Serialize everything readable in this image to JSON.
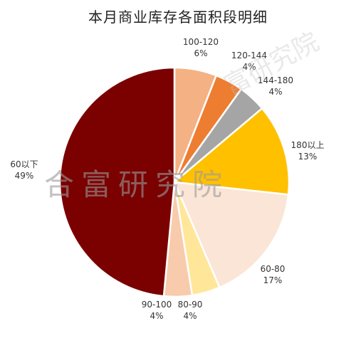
{
  "chart_data": {
    "type": "pie",
    "title": "本月商业库存各面积段明细",
    "start_angle_deg": 0,
    "direction": "clockwise",
    "slices": [
      {
        "label": "100-120",
        "value": 6,
        "value_label": "6%",
        "color": "#F4B183"
      },
      {
        "label": "120-144",
        "value": 4,
        "value_label": "4%",
        "color": "#ED7D31"
      },
      {
        "label": "144-180",
        "value": 4,
        "value_label": "4%",
        "color": "#A5A5A5"
      },
      {
        "label": "180以上",
        "value": 13,
        "value_label": "13%",
        "color": "#FFC000"
      },
      {
        "label": "60-80",
        "value": 17,
        "value_label": "17%",
        "color": "#FBE5D6"
      },
      {
        "label": "80-90",
        "value": 4,
        "value_label": "4%",
        "color": "#FFE699"
      },
      {
        "label": "90-100",
        "value": 4,
        "value_label": "4%",
        "color": "#F8CBAD"
      },
      {
        "label": "60以下",
        "value": 49,
        "value_label": "49%",
        "color": "#7B0000"
      }
    ]
  },
  "watermark": {
    "center_text": "合富研究院",
    "diagonal_text": "富研究院"
  }
}
